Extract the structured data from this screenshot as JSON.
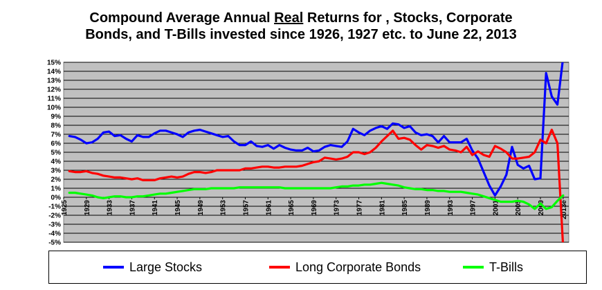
{
  "title": {
    "line1_pre": "Compound Average Annual ",
    "line1_real": "Real",
    "line1_post": " Returns for , Stocks, Corporate",
    "line2": "Bonds,  and T-Bills invested since 1926, 1927 etc. to  June 22, 2013"
  },
  "colors": {
    "plot_bg": "#c0c0c0",
    "grid": "#000000",
    "stocks": "#0000ff",
    "bonds": "#ff0000",
    "tbills": "#00ff00"
  },
  "chart_data": {
    "type": "line",
    "title": "Compound Average Annual Real Returns for , Stocks, Corporate Bonds,  and T-Bills invested since 1926, 1927 etc. to  June 22, 2013",
    "xlabel": "",
    "ylabel": "",
    "xlim": [
      1925,
      2014
    ],
    "ylim": [
      -5,
      15
    ],
    "grid": true,
    "legend_position": "bottom",
    "y_ticks": [
      "15%",
      "14%",
      "13%",
      "12%",
      "11%",
      "10%",
      "9%",
      "8%",
      "7%",
      "6%",
      "5%",
      "4%",
      "3%",
      "2%",
      "1%",
      "0%",
      "-1%",
      "-2%",
      "-3%",
      "-4%",
      "-5%"
    ],
    "x_ticks": [
      "1925",
      "1929",
      "1933",
      "1937",
      "1941",
      "1945",
      "1949",
      "1953",
      "1957",
      "1961",
      "1965",
      "1969",
      "1973",
      "1977",
      "1981",
      "1985",
      "1989",
      "1993",
      "1997",
      "2001",
      "2005",
      "2009",
      "2013e"
    ],
    "x": [
      1926,
      1927,
      1928,
      1929,
      1930,
      1931,
      1932,
      1933,
      1934,
      1935,
      1936,
      1937,
      1938,
      1939,
      1940,
      1941,
      1942,
      1943,
      1944,
      1945,
      1946,
      1947,
      1948,
      1949,
      1950,
      1951,
      1952,
      1953,
      1954,
      1955,
      1956,
      1957,
      1958,
      1959,
      1960,
      1961,
      1962,
      1963,
      1964,
      1965,
      1966,
      1967,
      1968,
      1969,
      1970,
      1971,
      1972,
      1973,
      1974,
      1975,
      1976,
      1977,
      1978,
      1979,
      1980,
      1981,
      1982,
      1983,
      1984,
      1985,
      1986,
      1987,
      1988,
      1989,
      1990,
      1991,
      1992,
      1993,
      1994,
      1995,
      1996,
      1997,
      1998,
      1999,
      2000,
      2001,
      2002,
      2003,
      2004,
      2005,
      2006,
      2007,
      2008,
      2009,
      2010,
      2011,
      2012,
      2013
    ],
    "series": [
      {
        "name": "Large Stocks",
        "values": [
          6.8,
          6.7,
          6.4,
          6.0,
          6.1,
          6.5,
          7.2,
          7.3,
          6.8,
          6.9,
          6.5,
          6.2,
          6.9,
          6.7,
          6.7,
          7.1,
          7.4,
          7.4,
          7.2,
          7.0,
          6.7,
          7.2,
          7.4,
          7.5,
          7.3,
          7.1,
          6.9,
          6.7,
          6.8,
          6.2,
          5.8,
          5.8,
          6.2,
          5.7,
          5.6,
          5.8,
          5.4,
          5.8,
          5.5,
          5.3,
          5.2,
          5.2,
          5.5,
          5.1,
          5.2,
          5.6,
          5.8,
          5.7,
          5.6,
          6.2,
          7.6,
          7.2,
          6.9,
          7.4,
          7.7,
          7.9,
          7.6,
          8.2,
          8.1,
          7.7,
          7.9,
          7.2,
          6.9,
          7.0,
          6.8,
          6.1,
          6.8,
          6.1,
          6.1,
          6.1,
          6.5,
          5.2,
          4.3,
          2.8,
          1.3,
          0.2,
          1.2,
          2.5,
          5.6,
          3.6,
          3.2,
          3.5,
          2.0,
          2.1,
          13.8,
          11.2,
          10.3,
          15.5
        ]
      },
      {
        "name": "Long Corporate Bonds",
        "values": [
          2.9,
          2.8,
          2.8,
          2.9,
          2.7,
          2.6,
          2.4,
          2.3,
          2.2,
          2.2,
          2.1,
          2.0,
          2.1,
          1.9,
          1.9,
          1.9,
          2.1,
          2.2,
          2.3,
          2.2,
          2.3,
          2.6,
          2.8,
          2.8,
          2.7,
          2.8,
          3.0,
          3.0,
          3.0,
          3.0,
          3.0,
          3.2,
          3.2,
          3.3,
          3.4,
          3.4,
          3.3,
          3.3,
          3.4,
          3.4,
          3.4,
          3.5,
          3.7,
          3.9,
          4.0,
          4.4,
          4.3,
          4.2,
          4.3,
          4.5,
          5.0,
          5.0,
          4.8,
          5.0,
          5.5,
          6.2,
          6.8,
          7.4,
          6.5,
          6.6,
          6.4,
          5.8,
          5.3,
          5.8,
          5.7,
          5.5,
          5.7,
          5.3,
          5.2,
          5.0,
          5.6,
          4.7,
          5.1,
          4.7,
          4.5,
          5.7,
          5.4,
          5.0,
          4.3,
          4.3,
          4.4,
          4.5,
          5.0,
          6.4,
          6.0,
          7.5,
          6.0,
          -5.5
        ]
      },
      {
        "name": "T-Bills",
        "values": [
          0.5,
          0.5,
          0.4,
          0.3,
          0.2,
          0.0,
          -0.1,
          0.0,
          0.1,
          0.1,
          0.0,
          0.0,
          0.1,
          0.1,
          0.2,
          0.3,
          0.4,
          0.4,
          0.5,
          0.6,
          0.7,
          0.8,
          0.9,
          0.9,
          0.9,
          1.0,
          1.0,
          1.0,
          1.0,
          1.0,
          1.1,
          1.1,
          1.1,
          1.1,
          1.1,
          1.1,
          1.1,
          1.1,
          1.0,
          1.0,
          1.0,
          1.0,
          1.0,
          1.0,
          1.0,
          1.0,
          1.0,
          1.1,
          1.2,
          1.2,
          1.3,
          1.3,
          1.4,
          1.4,
          1.5,
          1.6,
          1.5,
          1.4,
          1.3,
          1.1,
          1.0,
          0.9,
          0.9,
          0.8,
          0.8,
          0.7,
          0.7,
          0.6,
          0.6,
          0.6,
          0.5,
          0.4,
          0.3,
          0.1,
          -0.1,
          -0.3,
          -0.5,
          -0.5,
          -0.5,
          -0.4,
          -0.5,
          -0.8,
          -1.3,
          -0.7,
          -1.3,
          -1.1,
          -0.4,
          0.2
        ]
      }
    ]
  }
}
